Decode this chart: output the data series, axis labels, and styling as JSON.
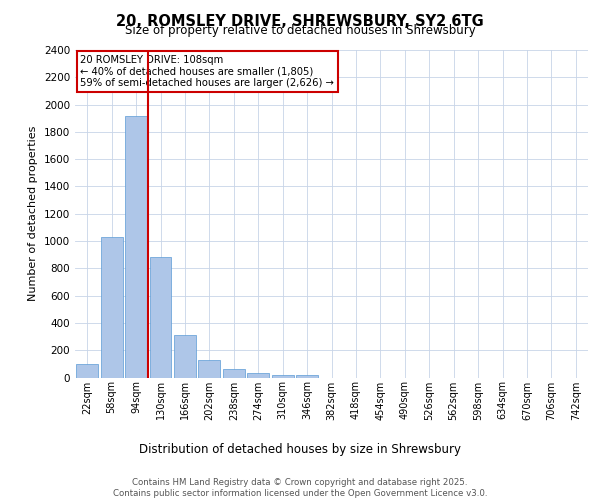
{
  "title_line1": "20, ROMSLEY DRIVE, SHREWSBURY, SY2 6TG",
  "title_line2": "Size of property relative to detached houses in Shrewsbury",
  "xlabel": "Distribution of detached houses by size in Shrewsbury",
  "ylabel": "Number of detached properties",
  "categories": [
    "22sqm",
    "58sqm",
    "94sqm",
    "130sqm",
    "166sqm",
    "202sqm",
    "238sqm",
    "274sqm",
    "310sqm",
    "346sqm",
    "382sqm",
    "418sqm",
    "454sqm",
    "490sqm",
    "526sqm",
    "562sqm",
    "598sqm",
    "634sqm",
    "670sqm",
    "706sqm",
    "742sqm"
  ],
  "values": [
    100,
    1030,
    1920,
    880,
    310,
    130,
    60,
    35,
    20,
    15,
    0,
    0,
    0,
    0,
    0,
    0,
    0,
    0,
    0,
    0,
    0
  ],
  "bar_color": "#aec6e8",
  "bar_edge_color": "#5b9bd5",
  "red_line_color": "#cc0000",
  "annotation_text_line1": "20 ROMSLEY DRIVE: 108sqm",
  "annotation_text_line2": "← 40% of detached houses are smaller (1,805)",
  "annotation_text_line3": "59% of semi-detached houses are larger (2,626) →",
  "ylim": [
    0,
    2400
  ],
  "yticks": [
    0,
    200,
    400,
    600,
    800,
    1000,
    1200,
    1400,
    1600,
    1800,
    2000,
    2200,
    2400
  ],
  "background_color": "#ffffff",
  "grid_color": "#c8d4e8",
  "footer_line1": "Contains HM Land Registry data © Crown copyright and database right 2025.",
  "footer_line2": "Contains public sector information licensed under the Open Government Licence v3.0."
}
